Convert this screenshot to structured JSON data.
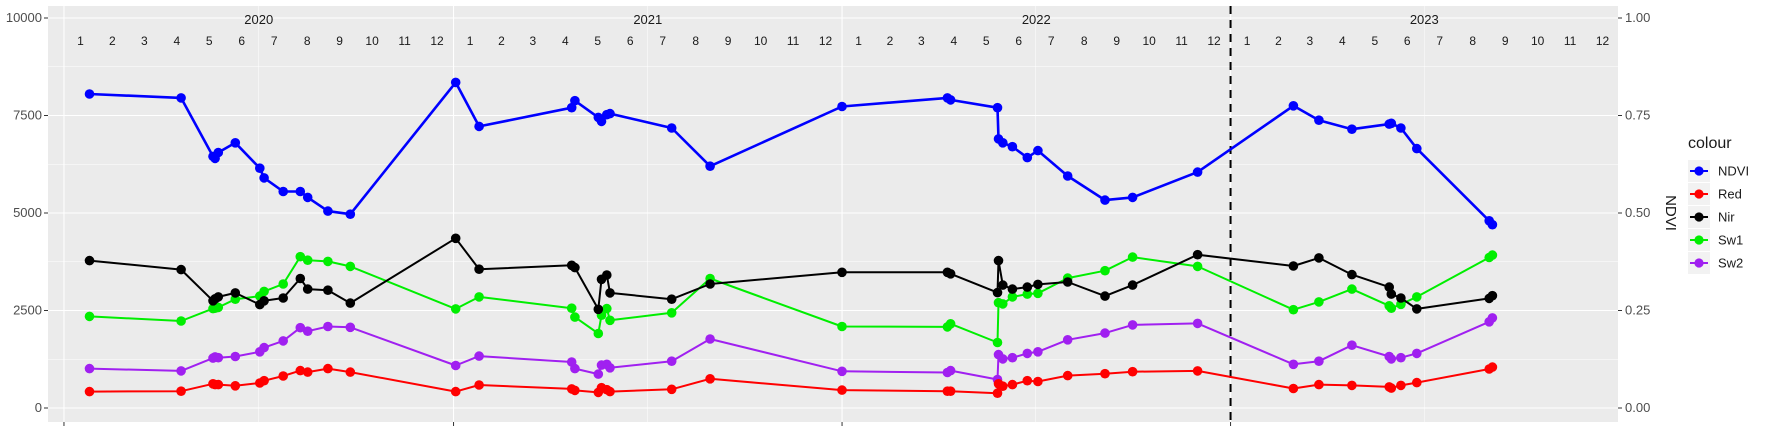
{
  "chart_data": {
    "type": "line",
    "xlabel": "",
    "ylabel": "",
    "y2label": "NDVI",
    "ylim": [
      0,
      10000
    ],
    "y2lim": [
      0,
      1
    ],
    "yticks": [
      0,
      2500,
      5000,
      7500,
      10000
    ],
    "yticklabels": [
      "0",
      "2500",
      "5000",
      "7500",
      "10000"
    ],
    "y2ticks": [
      0,
      0.25,
      0.5,
      0.75,
      1.0
    ],
    "y2ticklabels": [
      "0.00",
      "0.25",
      "0.50",
      "0.75",
      "1.00"
    ],
    "xlim": [
      "2019-12-17",
      "2023-12-31"
    ],
    "x_major_breaks": [
      "2020-01-01",
      "2021-01-01",
      "2022-01-01",
      "2023-01-01"
    ],
    "years": [
      {
        "label": "2020",
        "year": 2020
      },
      {
        "label": "2021",
        "year": 2021
      },
      {
        "label": "2022",
        "year": 2022
      },
      {
        "label": "2023",
        "year": 2023
      }
    ],
    "month_labels": [
      "1",
      "2",
      "3",
      "4",
      "5",
      "6",
      "7",
      "8",
      "9",
      "10",
      "11",
      "12"
    ],
    "vline": "2023-01-01",
    "grid": true,
    "legend": {
      "title": "colour",
      "position": "right"
    },
    "series": [
      {
        "name": "NDVI",
        "color": "#0000ff",
        "axis": "secondary",
        "x": [
          "2020-01-25",
          "2020-04-20",
          "2020-05-20",
          "2020-05-22",
          "2020-05-25",
          "2020-06-10",
          "2020-07-03",
          "2020-07-07",
          "2020-07-25",
          "2020-08-10",
          "2020-08-17",
          "2020-09-05",
          "2020-09-26",
          "2021-01-03",
          "2021-01-25",
          "2021-04-22",
          "2021-04-25",
          "2021-05-17",
          "2021-05-20",
          "2021-05-25",
          "2021-05-28",
          "2021-07-25",
          "2021-08-30",
          "2022-01-01",
          "2022-04-10",
          "2022-04-13",
          "2022-05-27",
          "2022-05-28",
          "2022-06-01",
          "2022-06-10",
          "2022-06-24",
          "2022-07-04",
          "2022-08-01",
          "2022-09-05",
          "2022-10-01",
          "2022-12-01",
          "2023-03-01",
          "2023-03-25",
          "2023-04-25",
          "2023-05-30",
          "2023-06-01",
          "2023-06-10",
          "2023-06-25",
          "2023-09-01",
          "2023-09-04"
        ],
        "y": [
          0.805,
          0.795,
          0.645,
          0.64,
          0.655,
          0.68,
          0.615,
          0.59,
          0.555,
          0.555,
          0.54,
          0.505,
          0.497,
          0.835,
          0.722,
          0.77,
          0.788,
          0.745,
          0.735,
          0.752,
          0.755,
          0.718,
          0.62,
          0.773,
          0.795,
          0.79,
          0.77,
          0.69,
          0.68,
          0.67,
          0.642,
          0.66,
          0.595,
          0.533,
          0.54,
          0.605,
          0.775,
          0.738,
          0.715,
          0.728,
          0.73,
          0.718,
          0.665,
          0.48,
          0.47
        ]
      },
      {
        "name": "Red",
        "color": "#ff0000",
        "axis": "primary",
        "x": [
          "2020-01-25",
          "2020-04-20",
          "2020-05-20",
          "2020-05-22",
          "2020-05-25",
          "2020-06-10",
          "2020-07-03",
          "2020-07-07",
          "2020-07-25",
          "2020-08-10",
          "2020-08-17",
          "2020-09-05",
          "2020-09-26",
          "2021-01-03",
          "2021-01-25",
          "2021-04-22",
          "2021-04-25",
          "2021-05-17",
          "2021-05-20",
          "2021-05-25",
          "2021-05-28",
          "2021-07-25",
          "2021-08-30",
          "2022-01-01",
          "2022-04-10",
          "2022-04-13",
          "2022-05-27",
          "2022-05-28",
          "2022-06-01",
          "2022-06-10",
          "2022-06-24",
          "2022-07-04",
          "2022-08-01",
          "2022-09-05",
          "2022-10-01",
          "2022-12-01",
          "2023-03-01",
          "2023-03-25",
          "2023-04-25",
          "2023-05-30",
          "2023-06-01",
          "2023-06-10",
          "2023-06-25",
          "2023-09-01",
          "2023-09-04"
        ],
        "y": [
          420,
          430,
          620,
          600,
          600,
          570,
          640,
          700,
          820,
          960,
          920,
          1010,
          920,
          420,
          590,
          490,
          450,
          400,
          520,
          470,
          420,
          480,
          750,
          460,
          430,
          430,
          380,
          620,
          560,
          600,
          700,
          680,
          830,
          880,
          930,
          950,
          500,
          600,
          580,
          540,
          510,
          580,
          650,
          1000,
          1050
        ]
      },
      {
        "name": "Nir",
        "color": "#000000",
        "axis": "primary",
        "x": [
          "2020-01-25",
          "2020-04-20",
          "2020-05-20",
          "2020-05-22",
          "2020-05-25",
          "2020-06-10",
          "2020-07-03",
          "2020-07-07",
          "2020-07-25",
          "2020-08-10",
          "2020-08-17",
          "2020-09-05",
          "2020-09-26",
          "2021-01-03",
          "2021-01-25",
          "2021-04-22",
          "2021-04-25",
          "2021-05-17",
          "2021-05-20",
          "2021-05-25",
          "2021-05-28",
          "2021-07-25",
          "2021-08-30",
          "2022-01-01",
          "2022-04-10",
          "2022-04-13",
          "2022-05-27",
          "2022-05-28",
          "2022-06-01",
          "2022-06-10",
          "2022-06-24",
          "2022-07-04",
          "2022-08-01",
          "2022-09-05",
          "2022-10-01",
          "2022-12-01",
          "2023-03-01",
          "2023-03-25",
          "2023-04-25",
          "2023-05-30",
          "2023-06-01",
          "2023-06-10",
          "2023-06-25",
          "2023-09-01",
          "2023-09-04"
        ],
        "y": [
          3780,
          3550,
          2750,
          2800,
          2850,
          2950,
          2650,
          2750,
          2820,
          3320,
          3050,
          3020,
          2690,
          4350,
          3560,
          3660,
          3600,
          2530,
          3300,
          3410,
          2950,
          2790,
          3180,
          3480,
          3480,
          3440,
          2960,
          3780,
          3150,
          3050,
          3100,
          3170,
          3230,
          2870,
          3150,
          3930,
          3640,
          3850,
          3420,
          3100,
          2920,
          2820,
          2540,
          2810,
          2880
        ]
      },
      {
        "name": "Sw1",
        "color": "#00ee00",
        "axis": "primary",
        "x": [
          "2020-01-25",
          "2020-04-20",
          "2020-05-20",
          "2020-05-22",
          "2020-05-25",
          "2020-06-10",
          "2020-07-03",
          "2020-07-07",
          "2020-07-25",
          "2020-08-10",
          "2020-08-17",
          "2020-09-05",
          "2020-09-26",
          "2021-01-03",
          "2021-01-25",
          "2021-04-22",
          "2021-04-25",
          "2021-05-17",
          "2021-05-20",
          "2021-05-25",
          "2021-05-28",
          "2021-07-25",
          "2021-08-30",
          "2022-01-01",
          "2022-04-10",
          "2022-04-13",
          "2022-05-27",
          "2022-05-28",
          "2022-06-01",
          "2022-06-10",
          "2022-06-24",
          "2022-07-04",
          "2022-08-01",
          "2022-09-05",
          "2022-10-01",
          "2022-12-01",
          "2023-03-01",
          "2023-03-25",
          "2023-04-25",
          "2023-05-30",
          "2023-06-01",
          "2023-06-10",
          "2023-06-25",
          "2023-09-01",
          "2023-09-04"
        ],
        "y": [
          2350,
          2230,
          2550,
          2560,
          2580,
          2790,
          2870,
          2990,
          3180,
          3880,
          3790,
          3760,
          3630,
          2540,
          2850,
          2560,
          2330,
          1910,
          2380,
          2550,
          2250,
          2440,
          3320,
          2090,
          2080,
          2160,
          1680,
          2700,
          2670,
          2850,
          2920,
          2940,
          3330,
          3520,
          3870,
          3630,
          2520,
          2720,
          3050,
          2620,
          2560,
          2660,
          2850,
          3860,
          3920
        ]
      },
      {
        "name": "Sw2",
        "color": "#a020f0",
        "axis": "primary",
        "x": [
          "2020-01-25",
          "2020-04-20",
          "2020-05-20",
          "2020-05-22",
          "2020-05-25",
          "2020-06-10",
          "2020-07-03",
          "2020-07-07",
          "2020-07-25",
          "2020-08-10",
          "2020-08-17",
          "2020-09-05",
          "2020-09-26",
          "2021-01-03",
          "2021-01-25",
          "2021-04-22",
          "2021-04-25",
          "2021-05-17",
          "2021-05-20",
          "2021-05-25",
          "2021-05-28",
          "2021-07-25",
          "2021-08-30",
          "2022-01-01",
          "2022-04-10",
          "2022-04-13",
          "2022-05-27",
          "2022-05-28",
          "2022-06-01",
          "2022-06-10",
          "2022-06-24",
          "2022-07-04",
          "2022-08-01",
          "2022-09-05",
          "2022-10-01",
          "2022-12-01",
          "2023-03-01",
          "2023-03-25",
          "2023-04-25",
          "2023-05-30",
          "2023-06-01",
          "2023-06-10",
          "2023-06-25",
          "2023-09-01",
          "2023-09-04"
        ],
        "y": [
          1010,
          950,
          1280,
          1310,
          1290,
          1320,
          1440,
          1550,
          1720,
          2060,
          1970,
          2090,
          2070,
          1090,
          1330,
          1180,
          1010,
          870,
          1100,
          1120,
          1030,
          1200,
          1770,
          940,
          910,
          960,
          730,
          1370,
          1260,
          1290,
          1400,
          1440,
          1750,
          1920,
          2130,
          2170,
          1120,
          1200,
          1610,
          1320,
          1260,
          1290,
          1400,
          2210,
          2310
        ]
      }
    ]
  }
}
